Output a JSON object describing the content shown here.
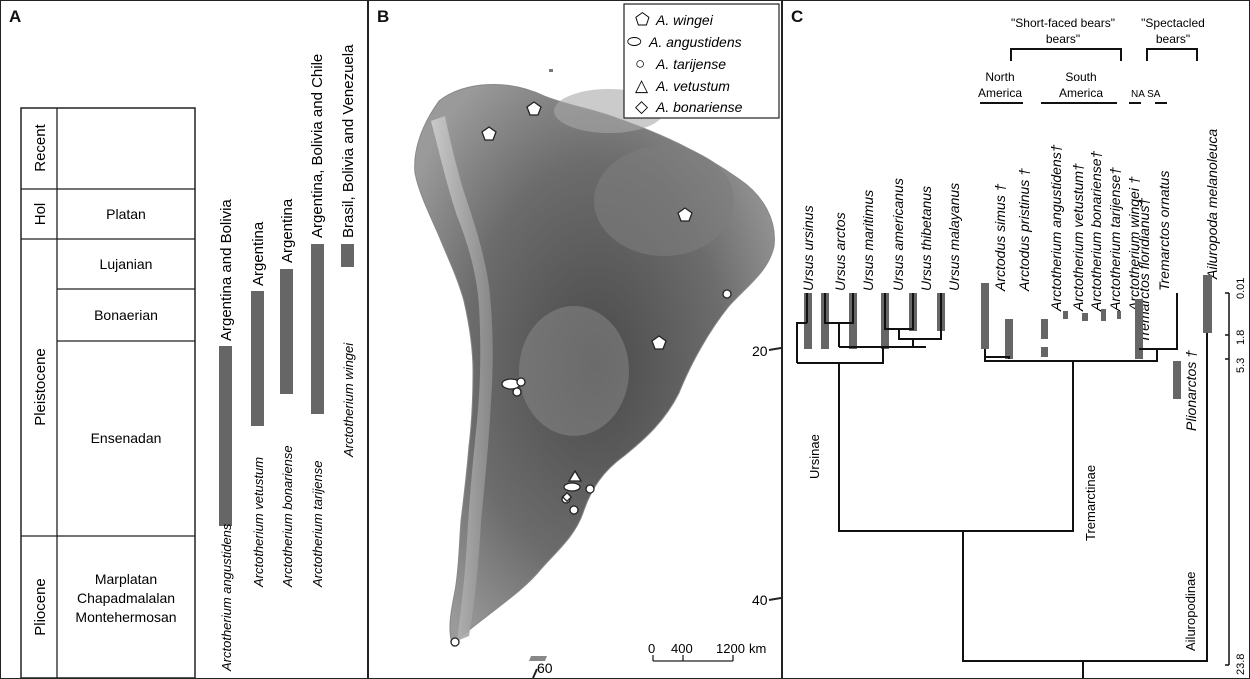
{
  "panels": {
    "a": "A",
    "b": "B",
    "c": "C"
  },
  "stratigraphy": {
    "epochs": [
      "Recent",
      "Hol",
      "Pleistocene",
      "Pliocene"
    ],
    "stages": [
      "Platan",
      "Lujanian",
      "Bonaerian",
      "Ensenadan",
      "Marplatan",
      "Chapadmalalan",
      "Montehermosan"
    ]
  },
  "species_ranges": [
    {
      "name": "Arctotherium angustidens",
      "region": "Argentina and Bolivia"
    },
    {
      "name": "Arctotherium vetustum",
      "region": "Argentina"
    },
    {
      "name": "Arctotherium bonariense",
      "region": "Argentina"
    },
    {
      "name": "Arctotherium tarijense",
      "region": "Argentina, Bolivia and Chile"
    },
    {
      "name": "Arctotherium wingei",
      "region": "Brasil, Bolivia and Venezuela"
    }
  ],
  "map": {
    "legend": [
      {
        "symbol": "⬠",
        "label": "A. wingei"
      },
      {
        "symbol": "⬭",
        "label": "A. angustidens"
      },
      {
        "symbol": "○",
        "label": "A. tarijense"
      },
      {
        "symbol": "△",
        "label": "A. vetustum"
      },
      {
        "symbol": "◇",
        "label": "A. bonariense"
      }
    ],
    "lat_labels": [
      "20",
      "40",
      "60"
    ],
    "scale_labels": [
      "0",
      "400",
      "1200",
      "km"
    ]
  },
  "tree": {
    "group_short_faced": "\"Short-faced bears\"",
    "group_spectacled": "\"Spectacled bears\"",
    "north_america": "North America",
    "south_america": "South America",
    "na_sa": "NA SA",
    "taxa": [
      "Ursus ursinus",
      "Ursus arctos",
      "Ursus maritimus",
      "Ursus americanus",
      "Ursus thibetanus",
      "Ursus malayanus",
      "Arctodus simus †",
      "Arctodus pristinus †",
      "Arctotherium angustidens†",
      "Arctotherium vetustum†",
      "Arctotherium bonariense†",
      "Arctotherium tarijense†",
      "Arctotherium wingei †",
      "Tremarctos floridianus†",
      "Tremarctos ornatus",
      "Plionarctos †",
      "Ailuropoda melanoleuca"
    ],
    "clades": [
      "Ursinae",
      "Tremarctinae",
      "Ailuropodinae"
    ],
    "time_axis": [
      "0.01",
      "1.8",
      "5.3",
      "23.8"
    ]
  }
}
